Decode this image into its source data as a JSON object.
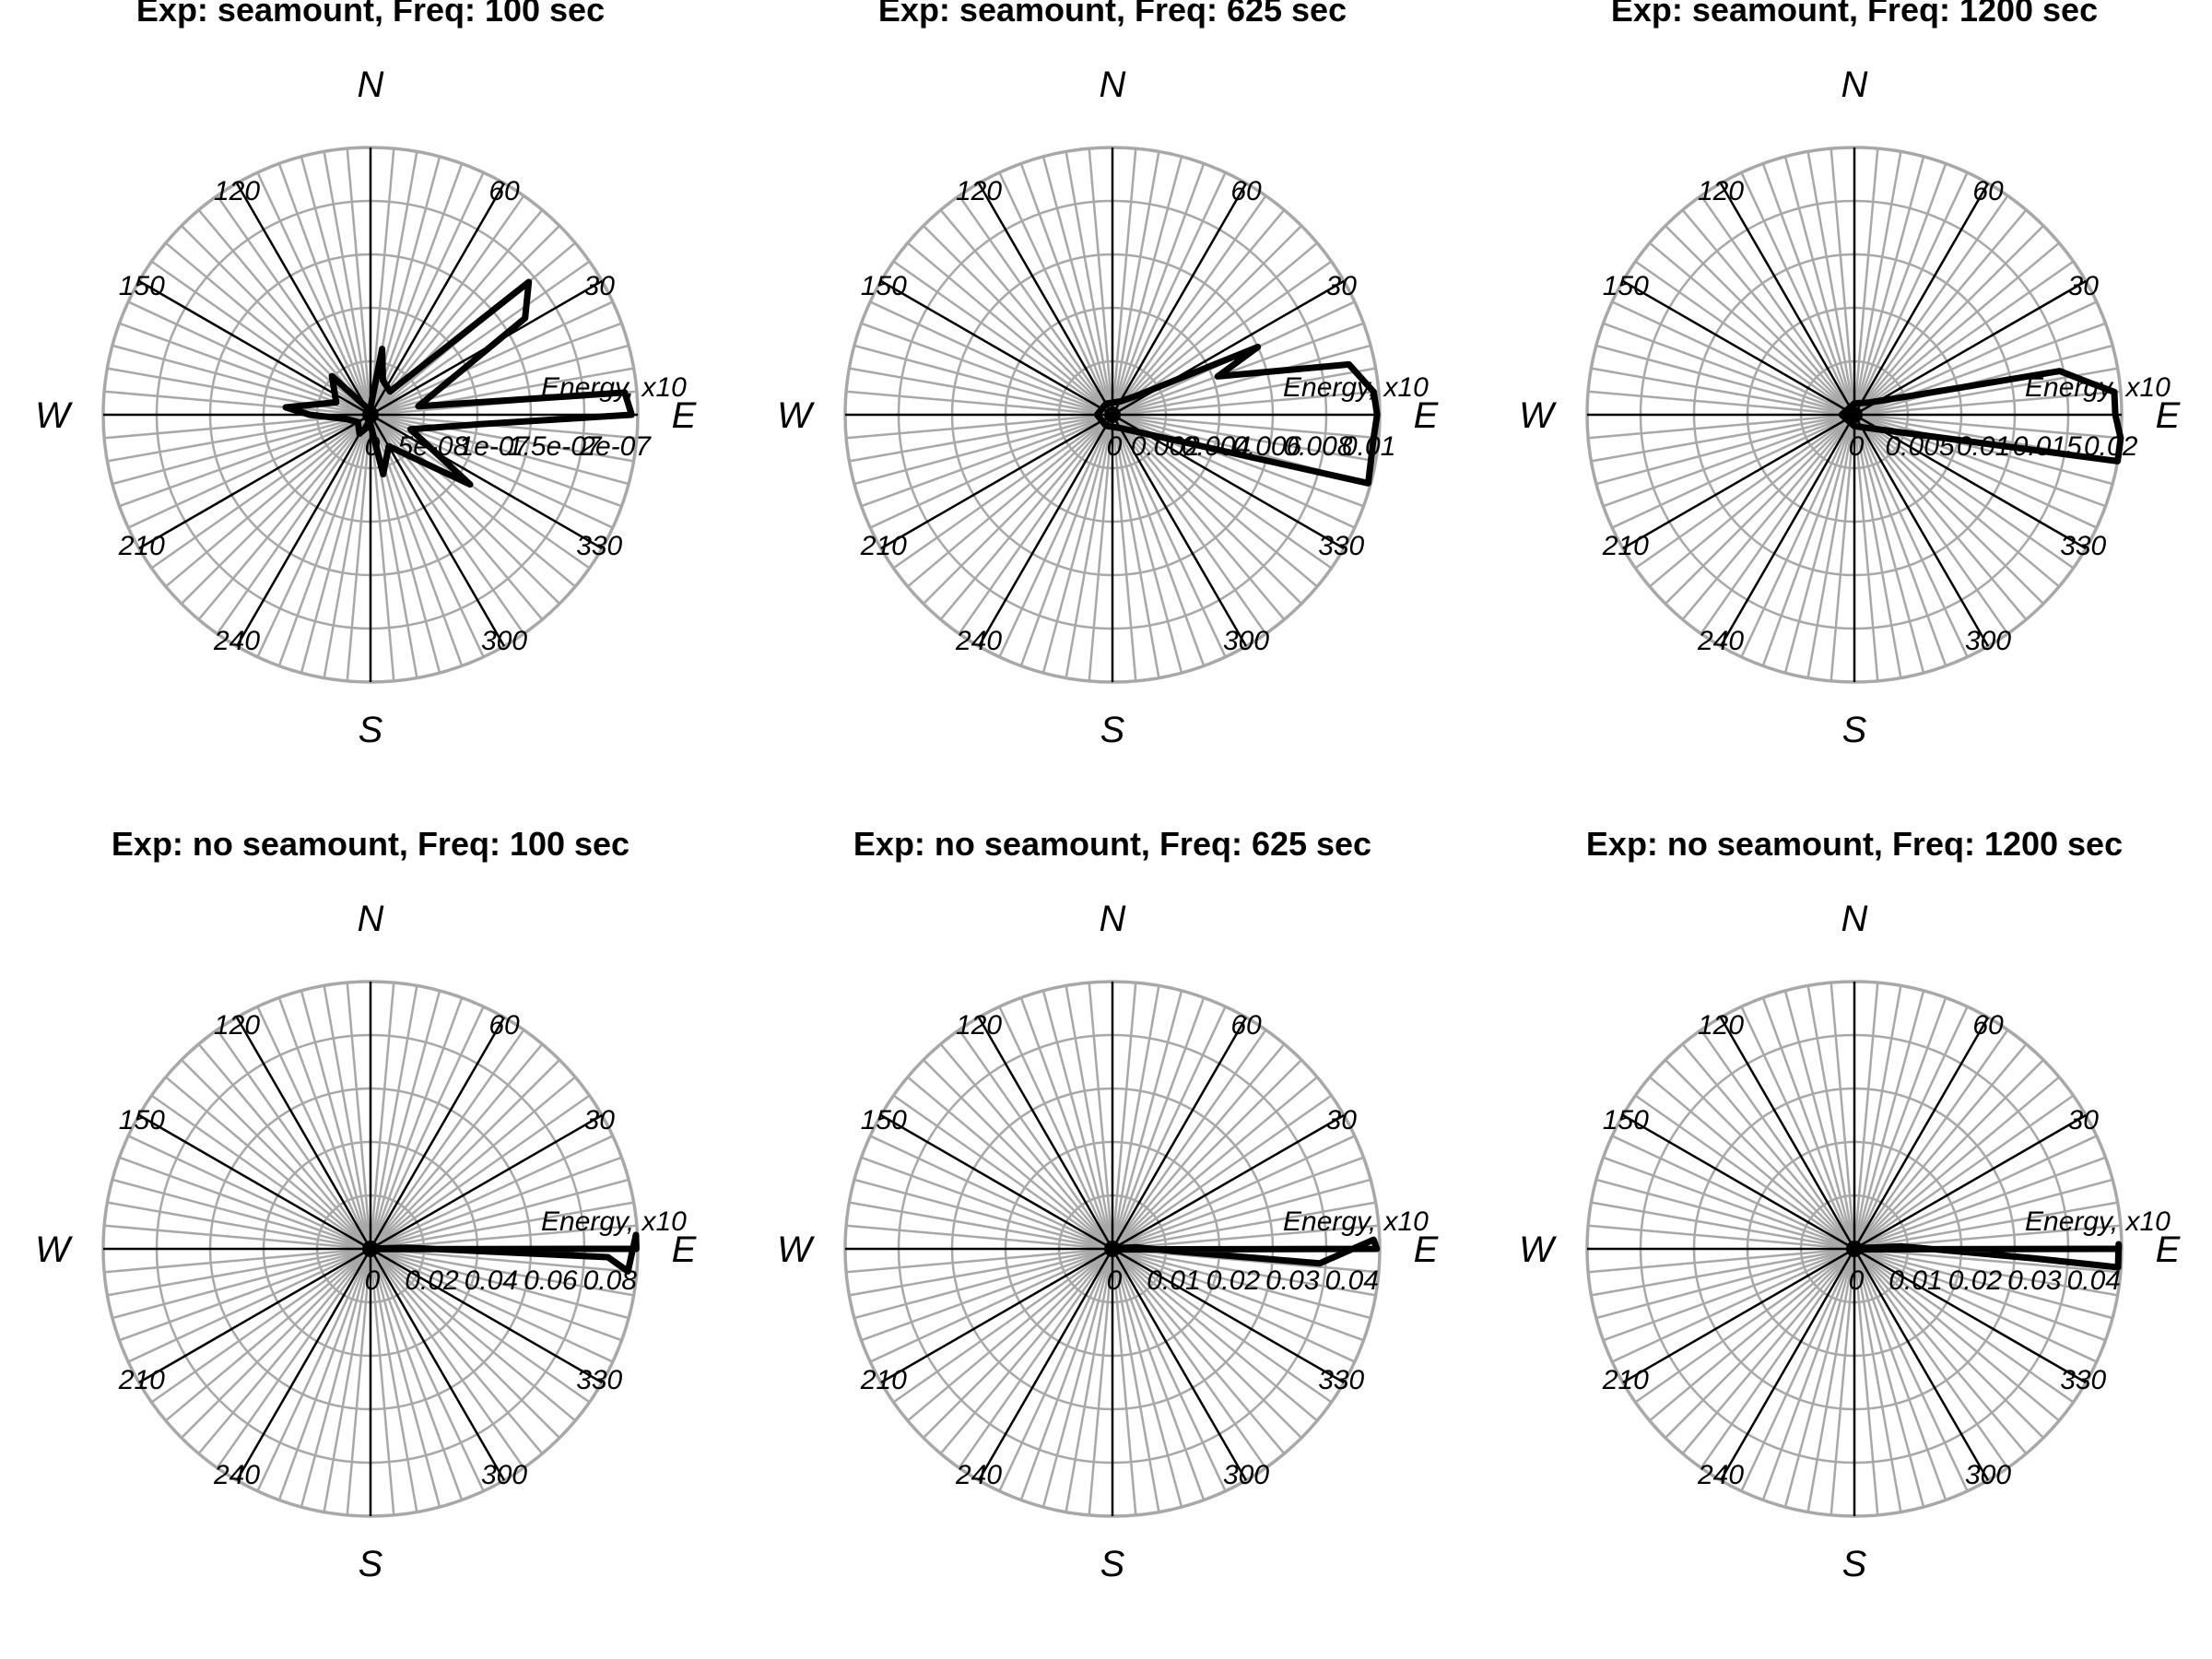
{
  "figure": {
    "compass_labels": {
      "north": "N",
      "south": "S",
      "east": "E",
      "west": "W"
    },
    "angle_ticks": [
      "30",
      "60",
      "120",
      "150",
      "210",
      "240",
      "300",
      "330"
    ],
    "radial_unit_label": "Energy, x10"
  },
  "chart_data": [
    {
      "type": "polar-line",
      "title": "Exp: seamount, Freq: 100 sec",
      "radial_ticks": [
        "0",
        "5e-08",
        "1e-07",
        "1.5e-07",
        "2e-07"
      ],
      "rmax": 2.2e-07,
      "series": [
        {
          "points": [
            [
              0,
              2.15e-07
            ],
            [
              5,
              2.1e-07
            ],
            [
              10,
              4e-08
            ],
            [
              32,
              1.5e-07
            ],
            [
              40,
              1.7e-07
            ],
            [
              50,
              2.5e-08
            ],
            [
              70,
              3e-08
            ],
            [
              80,
              5.5e-08
            ],
            [
              90,
              6e-09
            ],
            [
              110,
              5e-09
            ],
            [
              135,
              4.5e-08
            ],
            [
              160,
              3e-08
            ],
            [
              175,
              7e-08
            ],
            [
              180,
              5e-08
            ],
            [
              190,
              2e-08
            ],
            [
              210,
              1.2e-08
            ],
            [
              240,
              1.8e-08
            ],
            [
              270,
              8e-09
            ],
            [
              282,
              5e-08
            ],
            [
              300,
              3e-08
            ],
            [
              325,
              1e-07
            ],
            [
              340,
              3.5e-08
            ],
            [
              355,
              9e-08
            ]
          ]
        }
      ]
    },
    {
      "type": "polar-line",
      "title": "Exp: seamount, Freq: 625 sec",
      "radial_ticks": [
        "0",
        "0.002",
        "0.004",
        "0.006",
        "0.008",
        "0.01"
      ],
      "rmax": 0.0105,
      "series": [
        {
          "points": [
            [
              0,
              0.0104
            ],
            [
              5,
              0.0103
            ],
            [
              12,
              0.0095
            ],
            [
              20,
              0.0044
            ],
            [
              25,
              0.0063
            ],
            [
              30,
              0.0024
            ],
            [
              40,
              0.0011
            ],
            [
              60,
              0.0006
            ],
            [
              120,
              0.0005
            ],
            [
              180,
              0.0006
            ],
            [
              240,
              0.0005
            ],
            [
              300,
              0.0006
            ],
            [
              345,
              0.0104
            ],
            [
              355,
              0.0103
            ]
          ]
        }
      ]
    },
    {
      "type": "polar-line",
      "title": "Exp: seamount, Freq: 1200 sec",
      "radial_ticks": [
        "0",
        "0.005",
        "0.01",
        "0.015",
        "0.02"
      ],
      "rmax": 0.021,
      "series": [
        {
          "points": [
            [
              0,
              0.0205
            ],
            [
              5,
              0.0205
            ],
            [
              8,
              0.0185
            ],
            [
              12,
              0.0165
            ],
            [
              20,
              0.004
            ],
            [
              40,
              0.0015
            ],
            [
              90,
              0.0009
            ],
            [
              180,
              0.001
            ],
            [
              270,
              0.0009
            ],
            [
              350,
              0.021
            ],
            [
              355,
              0.021
            ]
          ]
        }
      ]
    },
    {
      "type": "polar-line",
      "title": "Exp: no seamount, Freq: 100 sec",
      "radial_ticks": [
        "0",
        "0.02",
        "0.04",
        "0.06",
        "0.08"
      ],
      "rmax": 0.09,
      "series": [
        {
          "points": [
            [
              0,
              0.0895
            ],
            [
              3,
              0.0895
            ],
            [
              355,
              0.087
            ],
            [
              358,
              0.08
            ],
            [
              2,
              0.012
            ],
            [
              90,
              0.0001
            ],
            [
              180,
              0.0001
            ],
            [
              270,
              0.0001
            ]
          ]
        }
      ]
    },
    {
      "type": "polar-line",
      "title": "Exp: no seamount, Freq: 625 sec",
      "radial_ticks": [
        "0",
        "0.01",
        "0.02",
        "0.03",
        "0.04"
      ],
      "rmax": 0.045,
      "series": [
        {
          "points": [
            [
              0,
              0.0445
            ],
            [
              2,
              0.044
            ],
            [
              356,
              0.035
            ],
            [
              358,
              0.01
            ],
            [
              4,
              0.004
            ],
            [
              90,
              0.0001
            ],
            [
              180,
              0.0001
            ],
            [
              270,
              0.0001
            ]
          ]
        }
      ]
    },
    {
      "type": "polar-line",
      "title": "Exp: no seamount, Freq: 1200 sec",
      "radial_ticks": [
        "0",
        "0.01",
        "0.02",
        "0.03",
        "0.04"
      ],
      "rmax": 0.045,
      "series": [
        {
          "points": [
            [
              0,
              0.0445
            ],
            [
              1,
              0.0445
            ],
            [
              356,
              0.0445
            ],
            [
              357,
              0.03
            ],
            [
              3,
              0.008
            ],
            [
              90,
              0.0001
            ],
            [
              180,
              0.0001
            ],
            [
              270,
              0.0001
            ]
          ]
        }
      ]
    }
  ]
}
